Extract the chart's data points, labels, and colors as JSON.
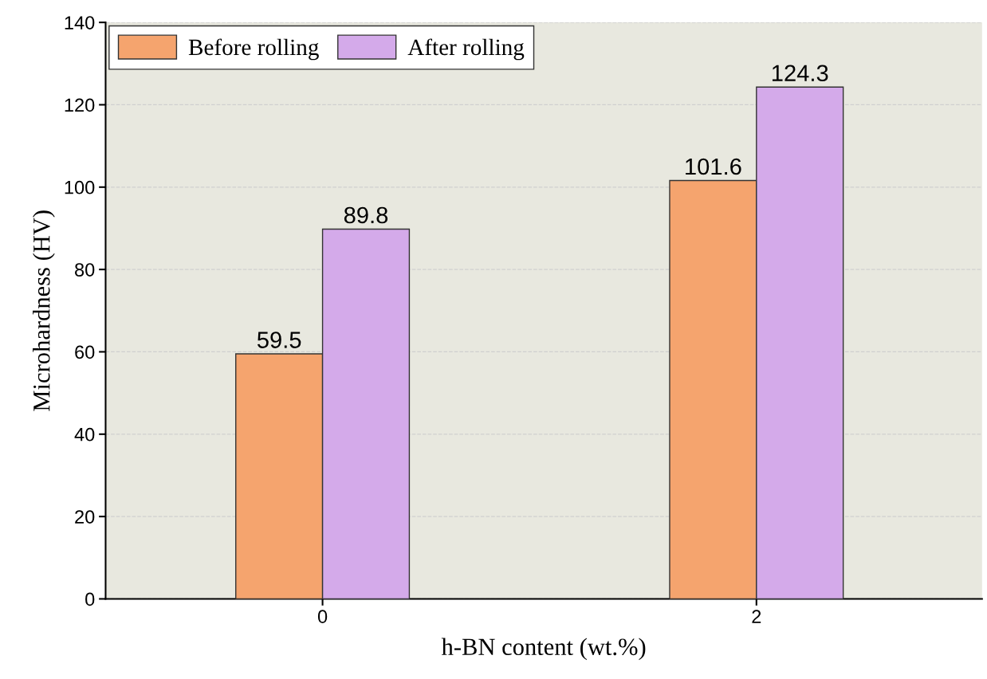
{
  "chart_data": {
    "type": "bar",
    "xlabel": "h-BN content (wt.%)",
    "ylabel": "Microhardness (HV)",
    "categories": [
      "0",
      "2"
    ],
    "series": [
      {
        "name": "Before rolling",
        "color": "#f5a46e",
        "values": [
          59.5,
          101.6
        ]
      },
      {
        "name": "After rolling",
        "color": "#d4aaea",
        "values": [
          89.8,
          124.3
        ]
      }
    ],
    "ylim": [
      0,
      140
    ],
    "yticks": [
      0,
      20,
      40,
      60,
      80,
      100,
      120,
      140
    ],
    "grid": "y",
    "legend": "top left",
    "data_labels": true
  }
}
